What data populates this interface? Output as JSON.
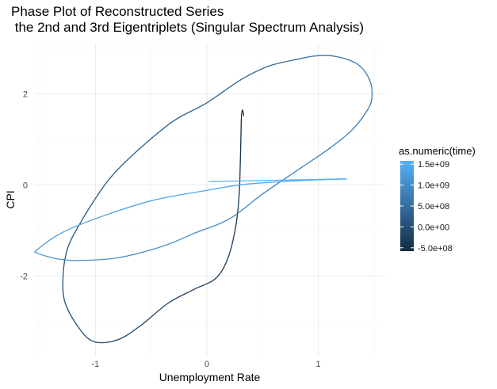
{
  "chart_data": {
    "type": "line",
    "title": "Phase Plot of Reconstructed Series\n the 2nd and 3rd Eigentriplets (Singular Spectrum Analysis)",
    "xlabel": "Unemployment Rate",
    "ylabel": "CPI",
    "xlim": [
      -1.55,
      1.6
    ],
    "ylim": [
      -3.75,
      3.1
    ],
    "x_ticks": [
      -1,
      0,
      1
    ],
    "y_ticks": [
      -2,
      0,
      2
    ],
    "grid": true,
    "legend": {
      "title": "as.numeric(time)",
      "position": "right",
      "labels": [
        "1.5e+09",
        "1.0e+09",
        "5.0e+08",
        "0.0e+00",
        "-5.0e+08"
      ],
      "values": [
        1500000000.0,
        1000000000.0,
        500000000.0,
        0.0,
        -500000000.0
      ],
      "color_low": "#132B43",
      "color_high": "#56B1F7"
    },
    "series": [
      {
        "color_by": "time",
        "points": [
          [
            0.33,
            1.52
          ],
          [
            0.32,
            1.64
          ],
          [
            0.31,
            1.5
          ],
          [
            0.305,
            1.0
          ],
          [
            0.3,
            0.5
          ],
          [
            0.29,
            -0.2
          ],
          [
            0.26,
            -0.9
          ],
          [
            0.19,
            -1.6
          ],
          [
            0.08,
            -2.05
          ],
          [
            -0.12,
            -2.3
          ],
          [
            -0.35,
            -2.6
          ],
          [
            -0.6,
            -3.1
          ],
          [
            -0.8,
            -3.4
          ],
          [
            -1.0,
            -3.45
          ],
          [
            -1.13,
            -3.2
          ],
          [
            -1.27,
            -2.6
          ],
          [
            -1.29,
            -2.0
          ],
          [
            -1.25,
            -1.4
          ],
          [
            -1.15,
            -0.9
          ],
          [
            -1.0,
            -0.3
          ],
          [
            -0.85,
            0.2
          ],
          [
            -0.6,
            0.8
          ],
          [
            -0.3,
            1.4
          ],
          [
            0.0,
            1.8
          ],
          [
            0.3,
            2.3
          ],
          [
            0.55,
            2.6
          ],
          [
            0.8,
            2.75
          ],
          [
            0.98,
            2.83
          ],
          [
            1.15,
            2.82
          ],
          [
            1.35,
            2.65
          ],
          [
            1.46,
            2.3
          ],
          [
            1.48,
            1.9
          ],
          [
            1.43,
            1.6
          ],
          [
            1.3,
            1.2
          ],
          [
            1.1,
            0.8
          ],
          [
            0.8,
            0.3
          ],
          [
            0.5,
            -0.2
          ],
          [
            0.2,
            -0.75
          ],
          [
            -0.1,
            -1.05
          ],
          [
            -0.4,
            -1.35
          ],
          [
            -0.8,
            -1.6
          ],
          [
            -1.15,
            -1.66
          ],
          [
            -1.35,
            -1.62
          ],
          [
            -1.52,
            -1.5
          ],
          [
            -1.52,
            -1.42
          ],
          [
            -1.3,
            -1.05
          ],
          [
            -0.95,
            -0.7
          ],
          [
            -0.5,
            -0.35
          ],
          [
            0.0,
            -0.12
          ],
          [
            0.3,
            0.0
          ],
          [
            0.6,
            0.06
          ],
          [
            0.9,
            0.1
          ],
          [
            1.22,
            0.13
          ],
          [
            0.02,
            0.07
          ]
        ]
      }
    ]
  }
}
